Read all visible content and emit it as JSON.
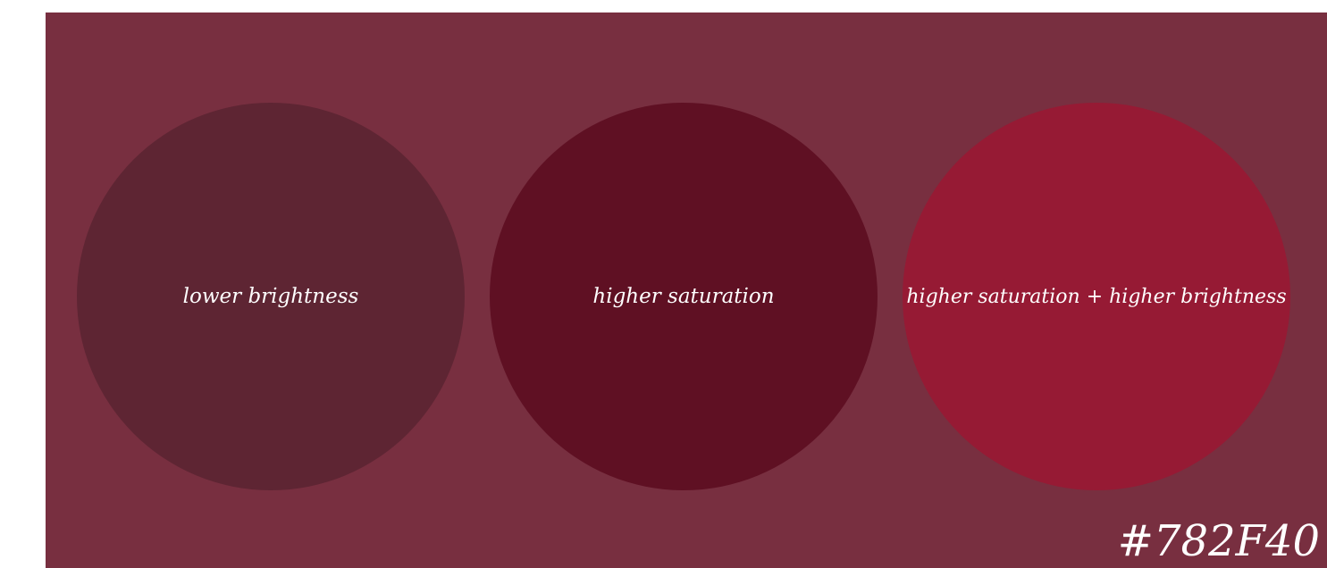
{
  "swatch": {
    "hex_label": "#782F40",
    "background_color": "#782F40"
  },
  "circles": [
    {
      "label": "lower brightness",
      "color": "#5E2533"
    },
    {
      "label": "higher saturation",
      "color": "#5F1023"
    },
    {
      "label": "higher saturation + higher brightness",
      "color": "#961A34"
    }
  ]
}
